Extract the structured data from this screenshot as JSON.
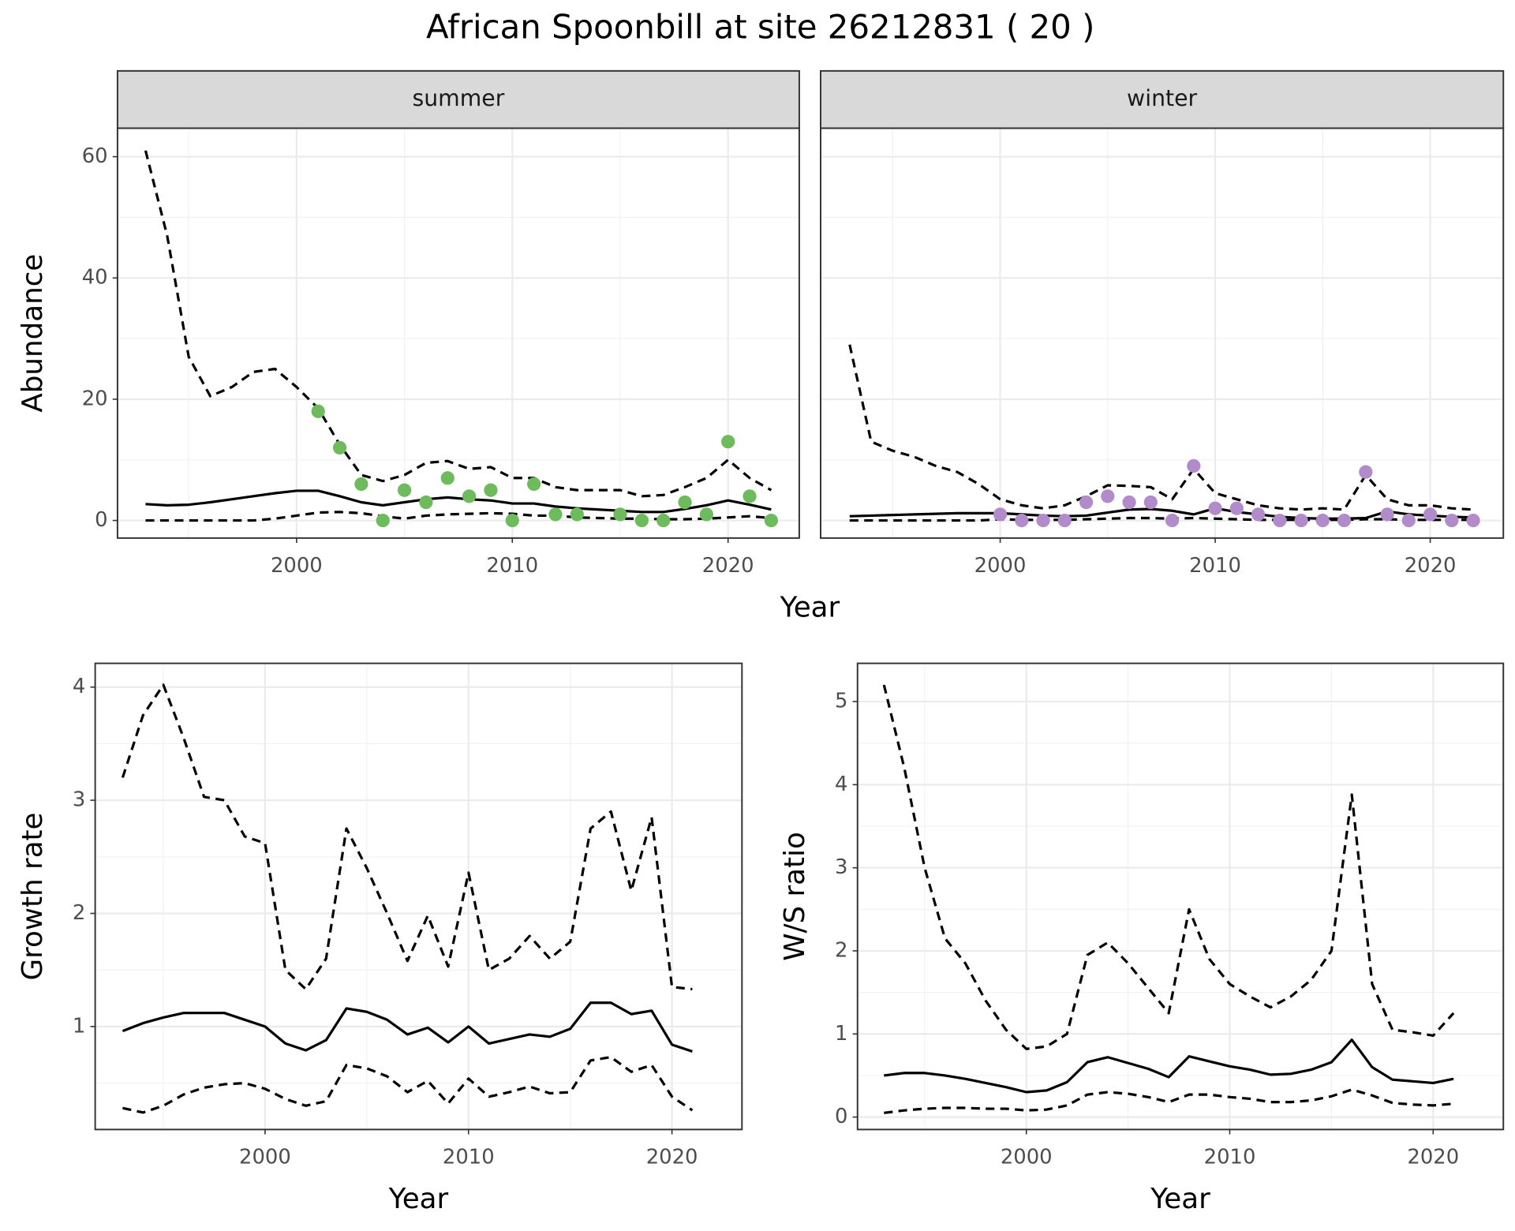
{
  "title": "African Spoonbill at site 26212831 ( 20 )",
  "chart_data": [
    {
      "type": "line",
      "panel": "summer",
      "x_label": "Year",
      "y_label": "Abundance",
      "x": [
        1993,
        1994,
        1995,
        1996,
        1997,
        1998,
        1999,
        2000,
        2001,
        2002,
        2003,
        2004,
        2005,
        2006,
        2007,
        2008,
        2009,
        2010,
        2011,
        2012,
        2013,
        2014,
        2015,
        2016,
        2017,
        2018,
        2019,
        2020,
        2021,
        2022
      ],
      "series": [
        {
          "style": "solid",
          "color": "#000000",
          "values": [
            2.7,
            2.5,
            2.6,
            3,
            3.5,
            4,
            4.5,
            4.9,
            4.9,
            4,
            3,
            2.5,
            3,
            3.5,
            3.8,
            3.5,
            3.3,
            2.8,
            2.8,
            2.3,
            2,
            1.8,
            1.6,
            1.4,
            1.4,
            1.9,
            2.5,
            3.3,
            2.6,
            1.8
          ]
        },
        {
          "style": "dashed",
          "color": "#000000",
          "values": [
            61,
            47,
            27,
            20.5,
            22,
            24.5,
            25,
            22,
            18.5,
            12.5,
            7.5,
            6.5,
            7.5,
            9.5,
            9.8,
            8.5,
            8.8,
            7,
            7,
            5.5,
            5,
            5,
            5,
            4,
            4.2,
            5.5,
            7,
            10,
            7,
            5
          ]
        },
        {
          "style": "dashed",
          "color": "#000000",
          "values": [
            0,
            0,
            0,
            0,
            0,
            0,
            0.3,
            0.8,
            1.3,
            1.4,
            1.2,
            0.7,
            0.3,
            0.8,
            1,
            1.1,
            1.2,
            1.1,
            0.8,
            0.8,
            0.5,
            0.4,
            0.3,
            0.3,
            0.2,
            0.2,
            0.3,
            0.5,
            0.7,
            0.4
          ]
        },
        {
          "style": "points",
          "color": "#6dbb5c",
          "values": [
            null,
            null,
            null,
            null,
            null,
            null,
            null,
            null,
            18,
            12,
            6,
            0,
            5,
            3,
            7,
            4,
            5,
            0,
            6,
            1,
            1,
            null,
            1,
            0,
            0,
            3,
            1,
            13,
            4,
            0
          ]
        }
      ],
      "xlim": [
        1991.7,
        2023.3
      ],
      "ylim": [
        -2.9,
        64.7
      ],
      "xticks": [
        2000,
        2010,
        2020
      ],
      "yticks": [
        0,
        20,
        40,
        60
      ],
      "grid": true,
      "minor_grid": true,
      "show_ytick_labels": true
    },
    {
      "type": "line",
      "panel": "winter",
      "x": [
        1993,
        1994,
        1995,
        1996,
        1997,
        1998,
        1999,
        2000,
        2001,
        2002,
        2003,
        2004,
        2005,
        2006,
        2007,
        2008,
        2009,
        2010,
        2011,
        2012,
        2013,
        2014,
        2015,
        2016,
        2017,
        2018,
        2019,
        2020,
        2021,
        2022
      ],
      "series": [
        {
          "style": "solid",
          "color": "#000000",
          "values": [
            0.7,
            0.8,
            0.9,
            1,
            1.1,
            1.2,
            1.2,
            1.2,
            1,
            0.8,
            0.7,
            0.8,
            1.3,
            1.8,
            1.9,
            1.6,
            1,
            2,
            1.4,
            1,
            0.6,
            0.4,
            0.3,
            0.3,
            0.4,
            1.5,
            1,
            0.8,
            0.6,
            0.5
          ]
        },
        {
          "style": "dashed",
          "color": "#000000",
          "values": [
            29,
            13,
            11.5,
            10.5,
            9,
            8,
            6,
            3.5,
            2.5,
            2,
            2.5,
            4,
            5.8,
            5.7,
            5.5,
            3.5,
            8.5,
            4.5,
            3.5,
            2.5,
            2,
            1.8,
            2,
            1.8,
            7.5,
            3.5,
            2.5,
            2.5,
            2,
            1.8
          ]
        },
        {
          "style": "dashed",
          "color": "#000000",
          "values": [
            0,
            0,
            0,
            0,
            0,
            0,
            0,
            0.2,
            0.1,
            0.1,
            0.1,
            0.2,
            0.3,
            0.4,
            0.4,
            0.3,
            0.4,
            0.3,
            0.2,
            0.1,
            0.1,
            0.1,
            0.1,
            0.1,
            0.2,
            0.2,
            0.1,
            0.1,
            0.1,
            0.1
          ]
        },
        {
          "style": "points",
          "color": "#b28bca",
          "values": [
            null,
            null,
            null,
            null,
            null,
            null,
            null,
            1,
            0,
            0,
            0,
            3,
            4,
            3,
            3,
            0,
            9,
            2,
            2,
            1,
            0,
            0,
            0,
            0,
            8,
            1,
            0,
            1,
            0,
            0
          ]
        }
      ],
      "xlim": [
        1991.65,
        2023.4
      ],
      "ylim": [
        -2.9,
        64.7
      ],
      "xticks": [
        2000,
        2010,
        2020
      ],
      "yticks": [
        0,
        20,
        40,
        60
      ],
      "grid": true,
      "minor_grid": true,
      "show_ytick_labels": false
    },
    {
      "type": "line",
      "x_label": "Year",
      "y_label": "Growth rate",
      "x": [
        1993,
        1994,
        1995,
        1996,
        1997,
        1998,
        1999,
        2000,
        2001,
        2002,
        2003,
        2004,
        2005,
        2006,
        2007,
        2008,
        2009,
        2010,
        2011,
        2012,
        2013,
        2014,
        2015,
        2016,
        2017,
        2018,
        2019,
        2020,
        2021
      ],
      "series": [
        {
          "style": "solid",
          "color": "#000000",
          "values": [
            0.96,
            1.03,
            1.08,
            1.12,
            1.12,
            1.12,
            1.06,
            1.0,
            0.85,
            0.79,
            0.88,
            1.16,
            1.13,
            1.06,
            0.93,
            0.99,
            0.86,
            1.0,
            0.85,
            0.89,
            0.93,
            0.91,
            0.98,
            1.21,
            1.21,
            1.11,
            1.14,
            0.84,
            0.78
          ]
        },
        {
          "style": "dashed",
          "color": "#000000",
          "values": [
            3.2,
            3.75,
            4.02,
            3.55,
            3.03,
            3.0,
            2.68,
            2.62,
            1.5,
            1.33,
            1.6,
            2.75,
            2.4,
            2.0,
            1.58,
            1.98,
            1.53,
            2.36,
            1.5,
            1.6,
            1.8,
            1.6,
            1.75,
            2.75,
            2.9,
            2.2,
            2.85,
            1.35,
            1.33
          ]
        },
        {
          "style": "dashed",
          "color": "#000000",
          "values": [
            0.28,
            0.24,
            0.3,
            0.4,
            0.46,
            0.49,
            0.5,
            0.45,
            0.36,
            0.3,
            0.34,
            0.66,
            0.63,
            0.56,
            0.42,
            0.52,
            0.32,
            0.54,
            0.38,
            0.42,
            0.47,
            0.41,
            0.42,
            0.7,
            0.73,
            0.6,
            0.66,
            0.38,
            0.26
          ]
        }
      ],
      "xlim": [
        1991.65,
        2023.44
      ],
      "ylim": [
        0.09,
        4.21
      ],
      "xticks": [
        2000,
        2010,
        2020
      ],
      "yticks": [
        1,
        2,
        3,
        4
      ],
      "grid": true,
      "minor_grid": true,
      "show_ytick_labels": true
    },
    {
      "type": "line",
      "x_label": "Year",
      "y_label": "W/S ratio",
      "x": [
        1993,
        1994,
        1995,
        1996,
        1997,
        1998,
        1999,
        2000,
        2001,
        2002,
        2003,
        2004,
        2005,
        2006,
        2007,
        2008,
        2009,
        2010,
        2011,
        2012,
        2013,
        2014,
        2015,
        2016,
        2017,
        2018,
        2019,
        2020,
        2021
      ],
      "series": [
        {
          "style": "solid",
          "color": "#000000",
          "values": [
            0.5,
            0.53,
            0.53,
            0.5,
            0.46,
            0.41,
            0.36,
            0.3,
            0.32,
            0.42,
            0.66,
            0.72,
            0.65,
            0.58,
            0.48,
            0.73,
            0.67,
            0.61,
            0.57,
            0.51,
            0.52,
            0.57,
            0.66,
            0.93,
            0.6,
            0.45,
            0.43,
            0.41,
            0.46
          ]
        },
        {
          "style": "dashed",
          "color": "#000000",
          "values": [
            5.2,
            4.2,
            3.0,
            2.15,
            1.85,
            1.4,
            1.05,
            0.82,
            0.85,
            1.0,
            1.95,
            2.1,
            1.85,
            1.55,
            1.25,
            2.5,
            1.9,
            1.6,
            1.45,
            1.32,
            1.45,
            1.65,
            2.0,
            3.88,
            1.6,
            1.05,
            1.02,
            0.98,
            1.25
          ]
        },
        {
          "style": "dashed",
          "color": "#000000",
          "values": [
            0.05,
            0.08,
            0.1,
            0.11,
            0.11,
            0.1,
            0.1,
            0.08,
            0.09,
            0.14,
            0.27,
            0.3,
            0.28,
            0.24,
            0.18,
            0.27,
            0.27,
            0.24,
            0.22,
            0.18,
            0.18,
            0.2,
            0.25,
            0.33,
            0.26,
            0.17,
            0.15,
            0.14,
            0.16
          ]
        }
      ],
      "xlim": [
        1991.7,
        2023.45
      ],
      "ylim": [
        -0.15,
        5.46
      ],
      "xticks": [
        2000,
        2010,
        2020
      ],
      "yticks": [
        0,
        1,
        2,
        3,
        4,
        5
      ],
      "grid": true,
      "minor_grid": true,
      "show_ytick_labels": true
    }
  ]
}
